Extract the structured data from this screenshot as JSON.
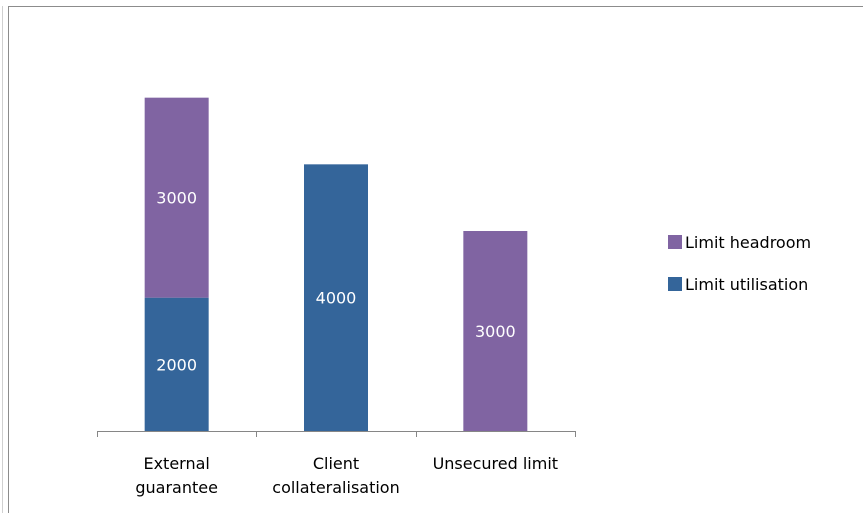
{
  "chart_data": {
    "type": "bar",
    "stacked": true,
    "categories": [
      [
        "External",
        "guarantee"
      ],
      [
        "Client",
        "collateralisation"
      ],
      [
        "Unsecured limit"
      ]
    ],
    "series": [
      {
        "name": "Limit utilisation",
        "color": "#34659A",
        "values": [
          2000,
          4000,
          0
        ]
      },
      {
        "name": "Limit headroom",
        "color": "#8064A2",
        "values": [
          3000,
          0,
          3000
        ]
      }
    ],
    "data_labels": [
      {
        "category": 0,
        "series": 0,
        "text": "2000"
      },
      {
        "category": 0,
        "series": 1,
        "text": "3000"
      },
      {
        "category": 1,
        "series": 0,
        "text": "4000"
      },
      {
        "category": 2,
        "series": 1,
        "text": "3000"
      }
    ],
    "legend": {
      "position": "right",
      "items": [
        {
          "label": "Limit headroom",
          "color": "#8064A2"
        },
        {
          "label": "Limit utilisation",
          "color": "#34659A"
        }
      ]
    },
    "ylim": [
      0,
      6000
    ],
    "grid": false,
    "axis_color": "#868686",
    "label_color": "#ffffff",
    "text_color": "#000000"
  }
}
